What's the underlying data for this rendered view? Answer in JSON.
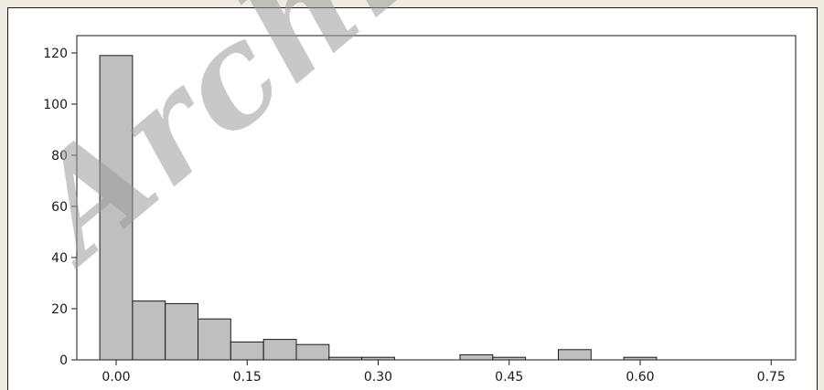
{
  "watermark": "Archive",
  "chart_data": {
    "type": "bar",
    "title": "",
    "xlabel": "",
    "ylabel": "",
    "bin_width": 0.0375,
    "x_start": -0.01875,
    "bins": [
      {
        "x": 0.0,
        "count": 119
      },
      {
        "x": 0.0375,
        "count": 23
      },
      {
        "x": 0.075,
        "count": 22
      },
      {
        "x": 0.1125,
        "count": 16
      },
      {
        "x": 0.15,
        "count": 7
      },
      {
        "x": 0.1875,
        "count": 8
      },
      {
        "x": 0.225,
        "count": 6
      },
      {
        "x": 0.2625,
        "count": 1
      },
      {
        "x": 0.3,
        "count": 1
      },
      {
        "x": 0.3375,
        "count": 0
      },
      {
        "x": 0.375,
        "count": 0
      },
      {
        "x": 0.4125,
        "count": 2
      },
      {
        "x": 0.45,
        "count": 1
      },
      {
        "x": 0.4875,
        "count": 0
      },
      {
        "x": 0.525,
        "count": 4
      },
      {
        "x": 0.5625,
        "count": 0
      },
      {
        "x": 0.6,
        "count": 1
      }
    ],
    "xlim": [
      -0.04,
      0.64
    ],
    "ylim": [
      0,
      125
    ],
    "xticks": [
      {
        "value": 0.0,
        "label": "0.00"
      },
      {
        "value": 0.15,
        "label": "0.15"
      },
      {
        "value": 0.3,
        "label": "0.30"
      },
      {
        "value": 0.45,
        "label": "0.45"
      },
      {
        "value": 0.6,
        "label": "0.60"
      },
      {
        "value": 0.75,
        "label": "0.75"
      }
    ],
    "yticks": [
      {
        "value": 0,
        "label": "0"
      },
      {
        "value": 20,
        "label": "20"
      },
      {
        "value": 40,
        "label": "40"
      },
      {
        "value": 60,
        "label": "60"
      },
      {
        "value": 80,
        "label": "80"
      },
      {
        "value": 100,
        "label": "100"
      },
      {
        "value": 120,
        "label": "120"
      }
    ],
    "bar_fill": "#bfbfbf",
    "bar_stroke": "#1a1a1a",
    "grid": false
  }
}
